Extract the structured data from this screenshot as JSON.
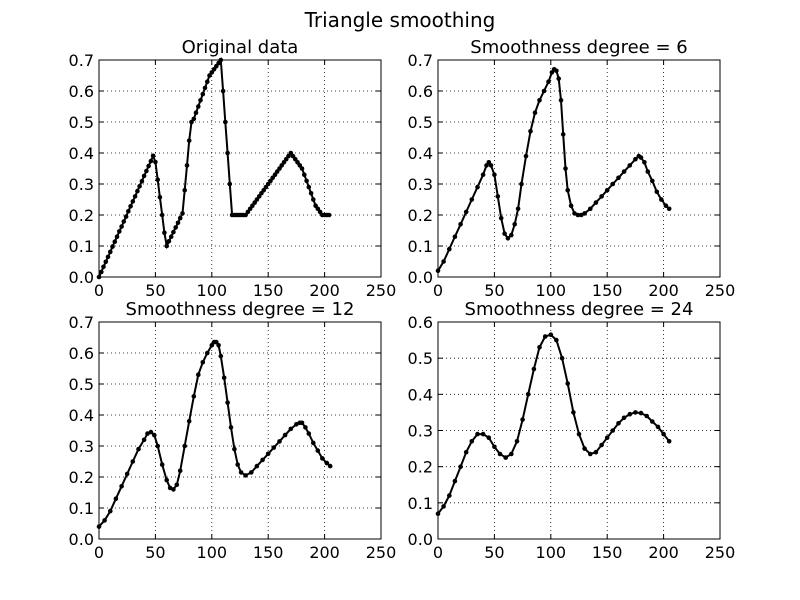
{
  "figure": {
    "suptitle": "Triangle smoothing"
  },
  "chart_data": [
    {
      "type": "line",
      "title": "Original data",
      "xlabel": "",
      "ylabel": "",
      "xlim": [
        0,
        250
      ],
      "ylim": [
        0,
        0.7
      ],
      "xticks": [
        "0",
        "50",
        "100",
        "150",
        "200",
        "250"
      ],
      "yticks": [
        "0.0",
        "0.1",
        "0.2",
        "0.3",
        "0.4",
        "0.5",
        "0.6",
        "0.7"
      ],
      "grid": true,
      "marker": "dot",
      "color": "#000000",
      "series": [
        {
          "x": [
            0,
            2,
            4,
            6,
            8,
            10,
            12,
            14,
            16,
            18,
            20,
            22,
            24,
            26,
            28,
            30,
            32,
            34,
            36,
            38,
            40,
            42,
            44,
            46,
            48,
            50,
            52,
            54,
            56,
            58,
            60,
            62,
            64,
            66,
            68,
            70,
            72,
            74,
            76,
            78,
            80,
            82,
            84,
            86,
            88,
            90,
            92,
            94,
            96,
            98,
            100,
            102,
            104,
            106,
            108,
            110,
            112,
            114,
            116,
            118,
            120,
            122,
            124,
            126,
            128,
            130,
            132,
            134,
            136,
            138,
            140,
            142,
            144,
            146,
            148,
            150,
            152,
            154,
            156,
            158,
            160,
            162,
            164,
            166,
            168,
            170,
            172,
            174,
            176,
            178,
            180,
            182,
            184,
            186,
            188,
            190,
            192,
            194,
            196,
            198,
            200,
            202,
            204
          ],
          "y": [
            0.0,
            0.016,
            0.033,
            0.049,
            0.065,
            0.081,
            0.098,
            0.114,
            0.13,
            0.147,
            0.163,
            0.179,
            0.195,
            0.212,
            0.228,
            0.244,
            0.26,
            0.277,
            0.293,
            0.309,
            0.326,
            0.342,
            0.358,
            0.374,
            0.391,
            0.371,
            0.314,
            0.257,
            0.2,
            0.143,
            0.1,
            0.115,
            0.13,
            0.145,
            0.16,
            0.175,
            0.19,
            0.205,
            0.28,
            0.36,
            0.44,
            0.5,
            0.51,
            0.53,
            0.55,
            0.57,
            0.59,
            0.61,
            0.63,
            0.65,
            0.66,
            0.67,
            0.68,
            0.69,
            0.7,
            0.6,
            0.5,
            0.4,
            0.3,
            0.2,
            0.2,
            0.2,
            0.2,
            0.2,
            0.2,
            0.2,
            0.21,
            0.22,
            0.23,
            0.24,
            0.25,
            0.26,
            0.27,
            0.28,
            0.29,
            0.3,
            0.31,
            0.32,
            0.33,
            0.34,
            0.35,
            0.36,
            0.37,
            0.38,
            0.39,
            0.4,
            0.39,
            0.38,
            0.37,
            0.36,
            0.35,
            0.33,
            0.31,
            0.29,
            0.27,
            0.25,
            0.23,
            0.22,
            0.21,
            0.2,
            0.2,
            0.2,
            0.2
          ]
        }
      ]
    },
    {
      "type": "line",
      "title": "Smoothness degree = 6",
      "xlabel": "",
      "ylabel": "",
      "xlim": [
        0,
        250
      ],
      "ylim": [
        0,
        0.7
      ],
      "xticks": [
        "0",
        "50",
        "100",
        "150",
        "200",
        "250"
      ],
      "yticks": [
        "0.0",
        "0.1",
        "0.2",
        "0.3",
        "0.4",
        "0.5",
        "0.6",
        "0.7"
      ],
      "grid": true,
      "marker": "dot",
      "color": "#000000",
      "series": [
        {
          "x": [
            0,
            5,
            10,
            15,
            20,
            25,
            30,
            35,
            40,
            43,
            45,
            47,
            50,
            53,
            56,
            59,
            62,
            65,
            68,
            71,
            74,
            78,
            82,
            86,
            90,
            94,
            98,
            101,
            103,
            105,
            107,
            109,
            111,
            113,
            115,
            118,
            121,
            124,
            127,
            130,
            135,
            140,
            145,
            150,
            155,
            160,
            165,
            170,
            175,
            178,
            180,
            183,
            186,
            190,
            194,
            198,
            202,
            205
          ],
          "y": [
            0.02,
            0.05,
            0.09,
            0.13,
            0.17,
            0.21,
            0.25,
            0.29,
            0.33,
            0.36,
            0.37,
            0.36,
            0.33,
            0.26,
            0.19,
            0.14,
            0.125,
            0.135,
            0.17,
            0.22,
            0.3,
            0.39,
            0.47,
            0.53,
            0.57,
            0.6,
            0.63,
            0.66,
            0.67,
            0.665,
            0.64,
            0.57,
            0.46,
            0.35,
            0.28,
            0.23,
            0.205,
            0.2,
            0.2,
            0.205,
            0.22,
            0.24,
            0.26,
            0.28,
            0.3,
            0.32,
            0.34,
            0.36,
            0.38,
            0.39,
            0.385,
            0.37,
            0.34,
            0.31,
            0.275,
            0.25,
            0.23,
            0.22
          ]
        }
      ]
    },
    {
      "type": "line",
      "title": "Smoothness degree = 12",
      "xlabel": "",
      "ylabel": "",
      "xlim": [
        0,
        250
      ],
      "ylim": [
        0,
        0.7
      ],
      "xticks": [
        "0",
        "50",
        "100",
        "150",
        "200",
        "250"
      ],
      "yticks": [
        "0.0",
        "0.1",
        "0.2",
        "0.3",
        "0.4",
        "0.5",
        "0.6",
        "0.7"
      ],
      "grid": true,
      "marker": "dot",
      "color": "#000000",
      "series": [
        {
          "x": [
            0,
            5,
            10,
            15,
            20,
            25,
            30,
            35,
            40,
            43,
            46,
            49,
            52,
            56,
            60,
            63,
            66,
            69,
            72,
            76,
            80,
            84,
            88,
            92,
            96,
            100,
            102,
            104,
            106,
            108,
            111,
            114,
            117,
            120,
            123,
            126,
            130,
            135,
            140,
            145,
            150,
            155,
            160,
            165,
            170,
            175,
            178,
            180,
            183,
            186,
            190,
            194,
            198,
            202,
            205
          ],
          "y": [
            0.04,
            0.06,
            0.09,
            0.13,
            0.17,
            0.21,
            0.25,
            0.29,
            0.32,
            0.34,
            0.345,
            0.335,
            0.3,
            0.24,
            0.19,
            0.165,
            0.16,
            0.175,
            0.22,
            0.3,
            0.38,
            0.46,
            0.53,
            0.57,
            0.6,
            0.625,
            0.635,
            0.635,
            0.625,
            0.59,
            0.52,
            0.44,
            0.36,
            0.29,
            0.24,
            0.215,
            0.205,
            0.215,
            0.235,
            0.255,
            0.275,
            0.295,
            0.315,
            0.335,
            0.355,
            0.37,
            0.375,
            0.375,
            0.36,
            0.34,
            0.31,
            0.285,
            0.26,
            0.245,
            0.235
          ]
        }
      ]
    },
    {
      "type": "line",
      "title": "Smoothness degree = 24",
      "xlabel": "",
      "ylabel": "",
      "xlim": [
        0,
        250
      ],
      "ylim": [
        0,
        0.6
      ],
      "xticks": [
        "0",
        "50",
        "100",
        "150",
        "200",
        "250"
      ],
      "yticks": [
        "0.0",
        "0.1",
        "0.2",
        "0.3",
        "0.4",
        "0.5",
        "0.6"
      ],
      "grid": true,
      "marker": "dot",
      "color": "#000000",
      "series": [
        {
          "x": [
            0,
            5,
            10,
            15,
            20,
            25,
            30,
            35,
            40,
            45,
            50,
            55,
            60,
            65,
            70,
            75,
            80,
            85,
            90,
            95,
            100,
            105,
            110,
            115,
            120,
            125,
            130,
            135,
            140,
            145,
            150,
            155,
            160,
            165,
            170,
            175,
            180,
            185,
            190,
            195,
            200,
            205
          ],
          "y": [
            0.07,
            0.09,
            0.12,
            0.16,
            0.2,
            0.24,
            0.27,
            0.29,
            0.29,
            0.28,
            0.255,
            0.235,
            0.225,
            0.235,
            0.27,
            0.33,
            0.4,
            0.47,
            0.53,
            0.56,
            0.565,
            0.55,
            0.5,
            0.43,
            0.35,
            0.29,
            0.25,
            0.235,
            0.24,
            0.26,
            0.28,
            0.3,
            0.32,
            0.335,
            0.345,
            0.35,
            0.348,
            0.34,
            0.325,
            0.31,
            0.29,
            0.27
          ]
        }
      ]
    }
  ]
}
